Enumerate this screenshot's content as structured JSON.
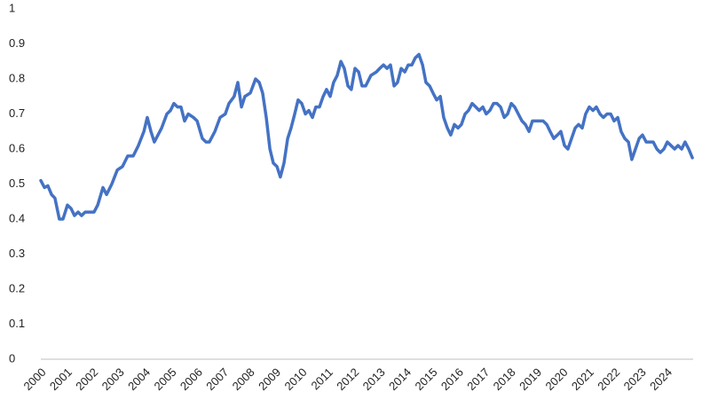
{
  "chart_data": {
    "type": "line",
    "x": [
      2000,
      2000.14,
      2000.27,
      2000.41,
      2000.54,
      2000.71,
      2000.85,
      2001.02,
      2001.16,
      2001.29,
      2001.43,
      2001.56,
      2001.7,
      2001.84,
      2002.04,
      2002.18,
      2002.38,
      2002.52,
      2002.72,
      2002.93,
      2003.13,
      2003.33,
      2003.54,
      2003.74,
      2003.95,
      2004.08,
      2004.22,
      2004.35,
      2004.49,
      2004.63,
      2004.83,
      2004.97,
      2005.1,
      2005.24,
      2005.37,
      2005.51,
      2005.65,
      2005.85,
      2005.99,
      2006.19,
      2006.33,
      2006.46,
      2006.67,
      2006.87,
      2007.07,
      2007.21,
      2007.41,
      2007.55,
      2007.69,
      2007.82,
      2008.03,
      2008.23,
      2008.37,
      2008.5,
      2008.64,
      2008.78,
      2008.91,
      2009.05,
      2009.18,
      2009.32,
      2009.46,
      2009.59,
      2009.73,
      2009.86,
      2010,
      2010.14,
      2010.27,
      2010.41,
      2010.54,
      2010.68,
      2010.82,
      2010.95,
      2011.09,
      2011.22,
      2011.36,
      2011.5,
      2011.63,
      2011.77,
      2011.9,
      2012.04,
      2012.18,
      2012.31,
      2012.45,
      2012.65,
      2012.86,
      2012.99,
      2013.13,
      2013.27,
      2013.4,
      2013.54,
      2013.67,
      2013.81,
      2013.95,
      2014.08,
      2014.22,
      2014.35,
      2014.49,
      2014.63,
      2014.76,
      2014.9,
      2015.03,
      2015.17,
      2015.31,
      2015.44,
      2015.58,
      2015.71,
      2015.85,
      2015.99,
      2016.12,
      2016.26,
      2016.39,
      2016.53,
      2016.67,
      2016.8,
      2016.94,
      2017.07,
      2017.21,
      2017.35,
      2017.48,
      2017.62,
      2017.76,
      2017.89,
      2018.03,
      2018.16,
      2018.3,
      2018.44,
      2018.57,
      2018.71,
      2018.84,
      2018.98,
      2019.12,
      2019.25,
      2019.39,
      2019.52,
      2019.66,
      2019.8,
      2019.93,
      2020.07,
      2020.2,
      2020.34,
      2020.48,
      2020.61,
      2020.75,
      2020.88,
      2021.02,
      2021.16,
      2021.29,
      2021.43,
      2021.56,
      2021.7,
      2021.84,
      2021.97,
      2022.11,
      2022.24,
      2022.38,
      2022.52,
      2022.65,
      2022.79,
      2022.93,
      2023.06,
      2023.2,
      2023.33,
      2023.47,
      2023.61,
      2023.74,
      2023.88,
      2024.01,
      2024.15,
      2024.29,
      2024.42,
      2024.56,
      2024.69,
      2024.83,
      2024.97
    ],
    "series": [
      {
        "color": "#4472c4",
        "values": [
          0.51,
          0.49,
          0.495,
          0.47,
          0.46,
          0.4,
          0.4,
          0.44,
          0.43,
          0.41,
          0.42,
          0.41,
          0.42,
          0.42,
          0.42,
          0.44,
          0.49,
          0.47,
          0.5,
          0.54,
          0.55,
          0.58,
          0.58,
          0.61,
          0.65,
          0.69,
          0.65,
          0.62,
          0.64,
          0.66,
          0.7,
          0.71,
          0.73,
          0.72,
          0.72,
          0.68,
          0.7,
          0.69,
          0.68,
          0.63,
          0.62,
          0.62,
          0.65,
          0.69,
          0.7,
          0.73,
          0.75,
          0.79,
          0.72,
          0.75,
          0.76,
          0.8,
          0.79,
          0.76,
          0.69,
          0.6,
          0.56,
          0.55,
          0.52,
          0.56,
          0.63,
          0.66,
          0.7,
          0.74,
          0.73,
          0.7,
          0.71,
          0.69,
          0.72,
          0.72,
          0.75,
          0.77,
          0.75,
          0.79,
          0.81,
          0.85,
          0.83,
          0.78,
          0.77,
          0.83,
          0.82,
          0.78,
          0.78,
          0.81,
          0.82,
          0.83,
          0.84,
          0.83,
          0.84,
          0.78,
          0.79,
          0.83,
          0.82,
          0.84,
          0.84,
          0.86,
          0.87,
          0.84,
          0.79,
          0.78,
          0.76,
          0.74,
          0.75,
          0.69,
          0.66,
          0.64,
          0.67,
          0.66,
          0.67,
          0.7,
          0.71,
          0.73,
          0.72,
          0.71,
          0.72,
          0.7,
          0.71,
          0.73,
          0.73,
          0.72,
          0.69,
          0.7,
          0.73,
          0.72,
          0.7,
          0.68,
          0.67,
          0.65,
          0.68,
          0.68,
          0.68,
          0.68,
          0.67,
          0.65,
          0.63,
          0.64,
          0.65,
          0.61,
          0.6,
          0.63,
          0.66,
          0.67,
          0.66,
          0.7,
          0.72,
          0.71,
          0.72,
          0.7,
          0.69,
          0.7,
          0.7,
          0.68,
          0.69,
          0.65,
          0.63,
          0.62,
          0.57,
          0.6,
          0.63,
          0.64,
          0.62,
          0.62,
          0.62,
          0.6,
          0.59,
          0.6,
          0.62,
          0.61,
          0.6,
          0.61,
          0.6,
          0.62,
          0.6,
          0.575
        ]
      }
    ],
    "xlim": [
      2000,
      2025
    ],
    "xticks": [
      2000,
      2001,
      2002,
      2003,
      2004,
      2005,
      2006,
      2007,
      2008,
      2009,
      2010,
      2011,
      2012,
      2013,
      2014,
      2015,
      2016,
      2017,
      2018,
      2019,
      2020,
      2021,
      2022,
      2023,
      2024
    ],
    "ylim": [
      0,
      1
    ],
    "yticks": [
      0,
      0.1,
      0.2,
      0.3,
      0.4,
      0.5,
      0.6,
      0.7,
      0.8,
      0.9,
      1
    ],
    "grid": false
  }
}
